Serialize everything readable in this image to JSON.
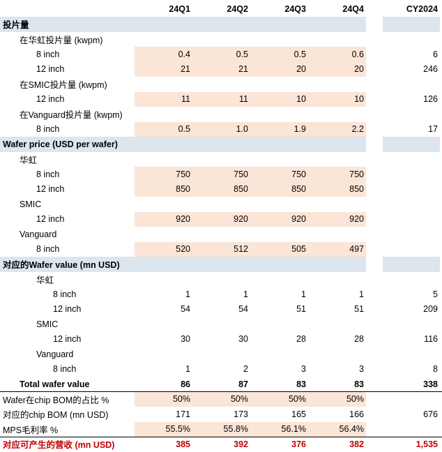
{
  "header": {
    "quarters": [
      "24Q1",
      "24Q2",
      "24Q3",
      "24Q4"
    ],
    "year": "CY2024"
  },
  "rows": [
    {
      "label": "投片量",
      "indent": 0,
      "style": "section",
      "q": [],
      "cy": ""
    },
    {
      "label": "在华虹投片量 (kwpm)",
      "indent": 1,
      "style": "",
      "q": [],
      "cy": ""
    },
    {
      "label": "8 inch",
      "indent": 2,
      "style": "hl",
      "q": [
        "0.4",
        "0.5",
        "0.5",
        "0.6"
      ],
      "cy": "6"
    },
    {
      "label": "12 inch",
      "indent": 2,
      "style": "hl",
      "q": [
        "21",
        "21",
        "20",
        "20"
      ],
      "cy": "246"
    },
    {
      "label": "在SMIC投片量 (kwpm)",
      "indent": 1,
      "style": "",
      "q": [],
      "cy": ""
    },
    {
      "label": "12 inch",
      "indent": 2,
      "style": "hl",
      "q": [
        "11",
        "11",
        "10",
        "10"
      ],
      "cy": "126"
    },
    {
      "label": "在Vanguard投片量 (kwpm)",
      "indent": 1,
      "style": "",
      "q": [],
      "cy": ""
    },
    {
      "label": "8 inch",
      "indent": 2,
      "style": "hl",
      "q": [
        "0.5",
        "1.0",
        "1.9",
        "2.2"
      ],
      "cy": "17"
    },
    {
      "label": "Wafer price (USD per wafer)",
      "indent": 0,
      "style": "section",
      "q": [],
      "cy": ""
    },
    {
      "label": "华虹",
      "indent": 1,
      "style": "",
      "q": [],
      "cy": ""
    },
    {
      "label": "8 inch",
      "indent": 2,
      "style": "hl",
      "q": [
        "750",
        "750",
        "750",
        "750"
      ],
      "cy": ""
    },
    {
      "label": "12 inch",
      "indent": 2,
      "style": "hl",
      "q": [
        "850",
        "850",
        "850",
        "850"
      ],
      "cy": ""
    },
    {
      "label": "SMIC",
      "indent": 1,
      "style": "",
      "q": [],
      "cy": ""
    },
    {
      "label": "12 inch",
      "indent": 2,
      "style": "hl",
      "q": [
        "920",
        "920",
        "920",
        "920"
      ],
      "cy": ""
    },
    {
      "label": "Vanguard",
      "indent": 1,
      "style": "",
      "q": [],
      "cy": ""
    },
    {
      "label": "8 inch",
      "indent": 2,
      "style": "hl",
      "q": [
        "520",
        "512",
        "505",
        "497"
      ],
      "cy": ""
    },
    {
      "label": "对应的Wafer value (mn USD)",
      "indent": 0,
      "style": "section",
      "q": [],
      "cy": ""
    },
    {
      "label": "华虹",
      "indent": 2,
      "style": "",
      "q": [],
      "cy": ""
    },
    {
      "label": "8 inch",
      "indent": 3,
      "style": "",
      "q": [
        "1",
        "1",
        "1",
        "1"
      ],
      "cy": "5"
    },
    {
      "label": "12 inch",
      "indent": 3,
      "style": "",
      "q": [
        "54",
        "54",
        "51",
        "51"
      ],
      "cy": "209"
    },
    {
      "label": "SMIC",
      "indent": 2,
      "style": "",
      "q": [],
      "cy": ""
    },
    {
      "label": "12 inch",
      "indent": 3,
      "style": "",
      "q": [
        "30",
        "30",
        "28",
        "28"
      ],
      "cy": "116"
    },
    {
      "label": "Vanguard",
      "indent": 2,
      "style": "",
      "q": [],
      "cy": ""
    },
    {
      "label": "8 inch",
      "indent": 3,
      "style": "",
      "q": [
        "1",
        "2",
        "3",
        "3"
      ],
      "cy": "8"
    },
    {
      "label": "Total wafer value",
      "indent": 1,
      "style": "total",
      "q": [
        "86",
        "87",
        "83",
        "83"
      ],
      "cy": "338"
    },
    {
      "label": "Wafer在chip BOM的占比 %",
      "indent": 0,
      "style": "hl",
      "q": [
        "50%",
        "50%",
        "50%",
        "50%"
      ],
      "cy": ""
    },
    {
      "label": "对应的chip BOM (mn USD)",
      "indent": 0,
      "style": "",
      "q": [
        "171",
        "173",
        "165",
        "166"
      ],
      "cy": "676"
    },
    {
      "label": "MPS毛利率 %",
      "indent": 0,
      "style": "hl",
      "q": [
        "55.5%",
        "55.8%",
        "56.1%",
        "56.4%"
      ],
      "cy": ""
    },
    {
      "label": "对应可产生的营收 (mn USD)",
      "indent": 0,
      "style": "result",
      "q": [
        "385",
        "392",
        "376",
        "382"
      ],
      "cy": "1,535"
    }
  ]
}
